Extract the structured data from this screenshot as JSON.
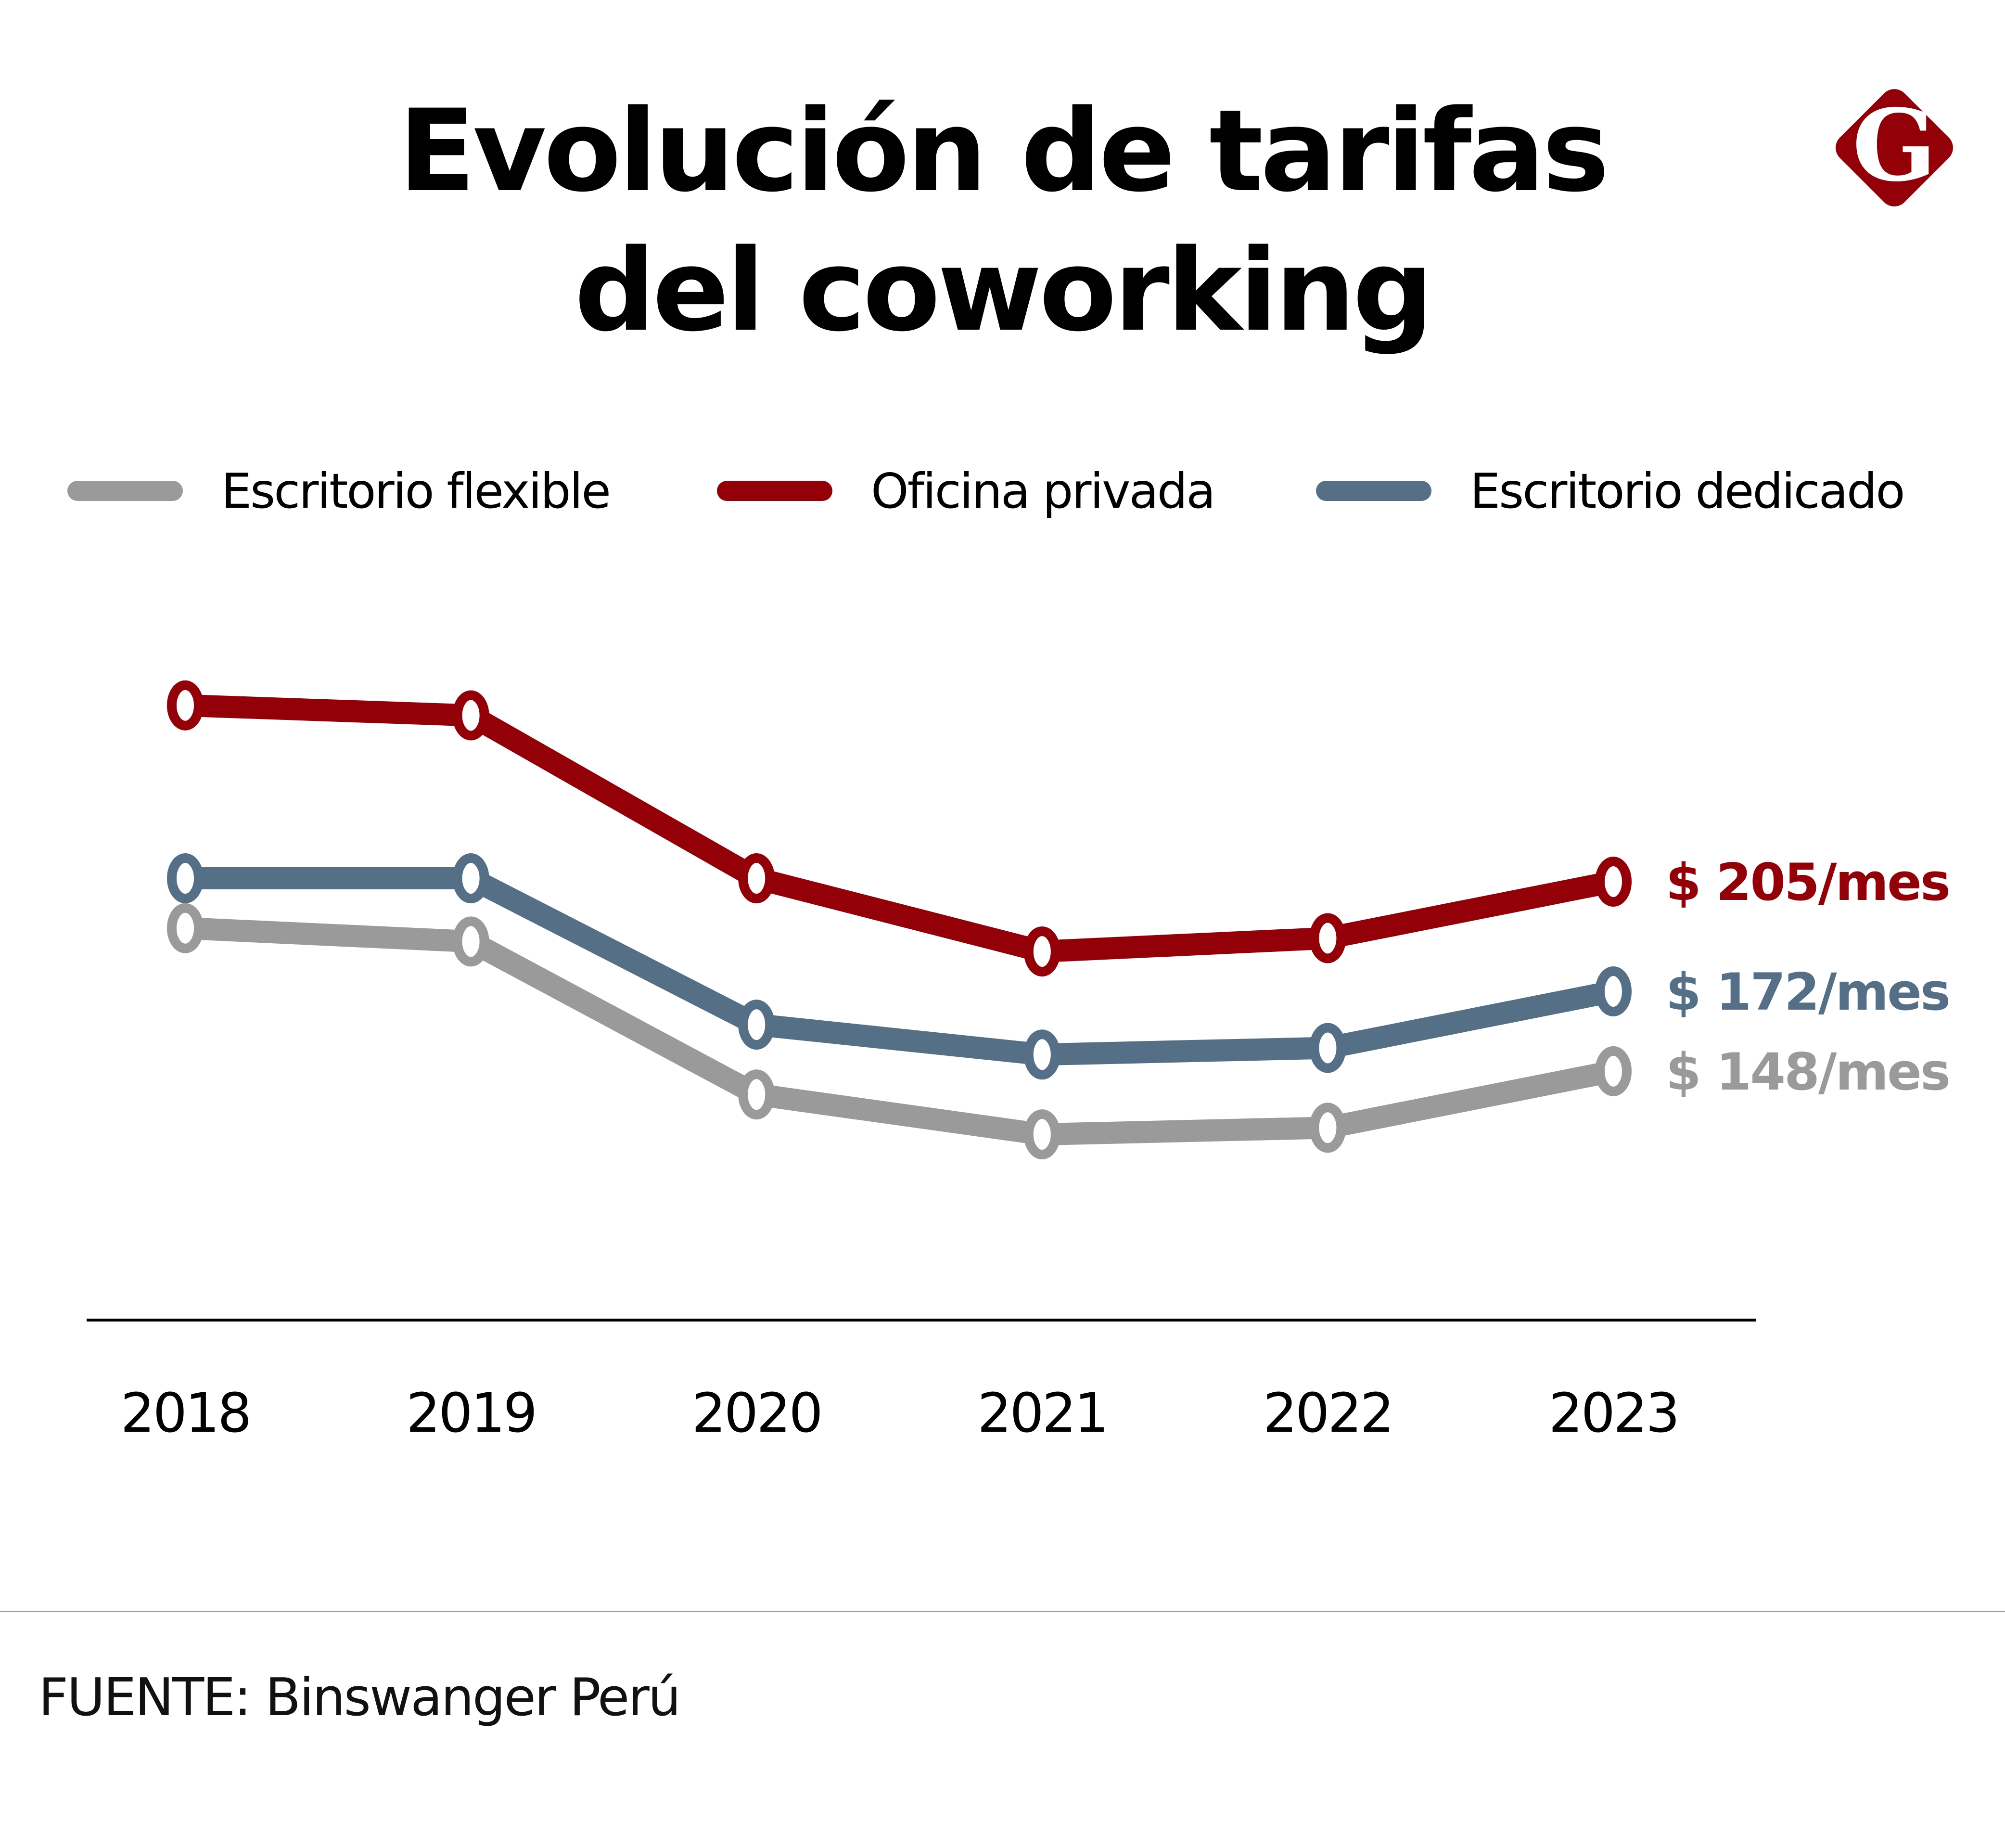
{
  "title_lines": [
    "Evolución de tarifas",
    "del coworking"
  ],
  "logo": {
    "icon": "g-diamond-logo-icon",
    "letter": "G",
    "color": "#940008"
  },
  "legend": [
    {
      "label": "Escritorio flexible",
      "color": "#9a9a9a"
    },
    {
      "label": "Oficina privada",
      "color": "#940008"
    },
    {
      "label": "Escritorio dedicado",
      "color": "#546f86"
    }
  ],
  "source": "FUENTE: Binswanger Perú",
  "chart_data": {
    "type": "line",
    "title": "Evolución de tarifas del coworking",
    "xlabel": "",
    "ylabel": "",
    "x": [
      "2018",
      "2019",
      "2020",
      "2021",
      "2022",
      "2023"
    ],
    "ylim": [
      100,
      270
    ],
    "grid": false,
    "legend_position": "top",
    "units": "USD/mes",
    "series": [
      {
        "name": "Escritorio flexible",
        "color": "#9a9a9a",
        "values": [
          191,
          187,
          141,
          129,
          131,
          148
        ],
        "end_label": "$ 148/mes"
      },
      {
        "name": "Oficina privada",
        "color": "#940008",
        "values": [
          258,
          255,
          206,
          184,
          188,
          205
        ],
        "end_label": "$ 205/mes"
      },
      {
        "name": "Escritorio dedicado",
        "color": "#546f86",
        "values": [
          206,
          206,
          162,
          153,
          155,
          172
        ],
        "end_label": "$ 172/mes"
      }
    ]
  }
}
